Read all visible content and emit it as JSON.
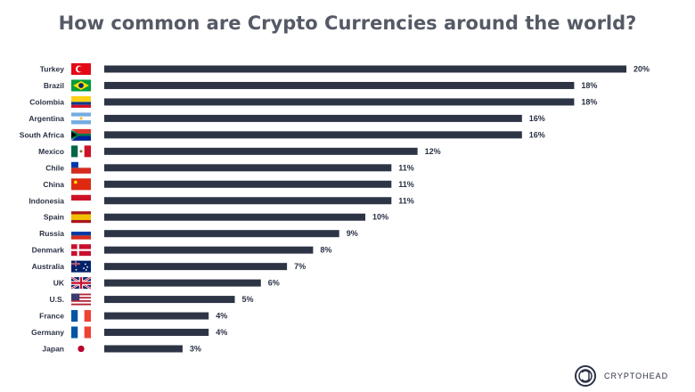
{
  "title": "How common are Crypto Currencies around the world?",
  "logo": {
    "text": "CRYPTOHEAD",
    "icon": "cryptohead-logo-icon"
  },
  "colors": {
    "bar": "#2d3446",
    "text": "#2b3245",
    "title": "#555a66"
  },
  "chart_data": {
    "type": "bar",
    "orientation": "horizontal",
    "title": "How common are Crypto Currencies around the world?",
    "xlabel": "",
    "ylabel": "",
    "xlim": [
      0,
      20
    ],
    "grid": false,
    "legend": "none",
    "categories": [
      "Turkey",
      "Brazil",
      "Colombia",
      "Argentina",
      "South Africa",
      "Mexico",
      "Chile",
      "China",
      "Indonesia",
      "Spain",
      "Russia",
      "Denmark",
      "Australia",
      "UK",
      "U.S.",
      "France",
      "Germany",
      "Japan"
    ],
    "values": [
      20,
      18,
      18,
      16,
      16,
      12,
      11,
      11,
      11,
      10,
      9,
      8,
      7,
      6,
      5,
      4,
      4,
      3
    ],
    "value_labels": [
      "20%",
      "18%",
      "18%",
      "16%",
      "16%",
      "12%",
      "11%",
      "11%",
      "11%",
      "10%",
      "9%",
      "8%",
      "7%",
      "6%",
      "5%",
      "4%",
      "4%",
      "3%"
    ],
    "flags": [
      "turkey-flag",
      "brazil-flag",
      "colombia-flag",
      "argentina-flag",
      "south-africa-flag",
      "mexico-flag",
      "chile-flag",
      "china-flag",
      "indonesia-flag",
      "spain-flag",
      "russia-flag",
      "denmark-flag",
      "australia-flag",
      "uk-flag",
      "us-flag",
      "france-flag",
      "germany-flag",
      "japan-flag"
    ]
  }
}
